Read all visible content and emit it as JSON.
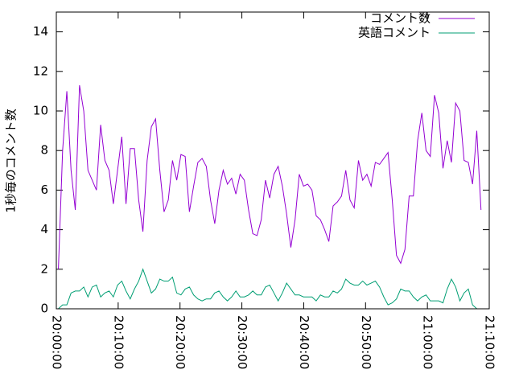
{
  "chart_data": {
    "type": "line",
    "y_label": "1秒毎のコメント数",
    "x": [
      "20:00:20",
      "20:01:01",
      "20:01:42",
      "20:02:23",
      "20:03:04",
      "20:03:45",
      "20:04:26",
      "20:05:07",
      "20:05:48",
      "20:06:29",
      "20:07:10",
      "20:07:51",
      "20:08:32",
      "20:09:13",
      "20:09:54",
      "20:10:35",
      "20:11:16",
      "20:11:57",
      "20:12:38",
      "20:13:19",
      "20:14:00",
      "20:14:41",
      "20:15:22",
      "20:16:03",
      "20:16:44",
      "20:17:25",
      "20:18:06",
      "20:18:47",
      "20:19:28",
      "20:20:09",
      "20:20:50",
      "20:21:31",
      "20:22:12",
      "20:22:53",
      "20:23:34",
      "20:24:15",
      "20:24:56",
      "20:25:37",
      "20:26:18",
      "20:26:59",
      "20:27:40",
      "20:28:21",
      "20:29:02",
      "20:29:43",
      "20:30:24",
      "20:31:05",
      "20:31:46",
      "20:32:27",
      "20:33:08",
      "20:33:49",
      "20:34:30",
      "20:35:11",
      "20:35:52",
      "20:36:33",
      "20:37:14",
      "20:37:55",
      "20:38:36",
      "20:39:17",
      "20:39:58",
      "20:40:39",
      "20:41:20",
      "20:42:01",
      "20:42:42",
      "20:43:23",
      "20:44:04",
      "20:44:45",
      "20:45:26",
      "20:46:07",
      "20:46:48",
      "20:47:29",
      "20:48:10",
      "20:48:51",
      "20:49:32",
      "20:50:13",
      "20:50:54",
      "20:51:35",
      "20:52:16",
      "20:52:57",
      "20:53:38",
      "20:54:19",
      "20:55:00",
      "20:55:41",
      "20:56:22",
      "20:57:03",
      "20:57:44",
      "20:58:25",
      "20:59:06",
      "20:59:47",
      "21:00:28",
      "21:01:09",
      "21:01:50",
      "21:02:31",
      "21:03:12",
      "21:03:53",
      "21:04:34",
      "21:05:15",
      "21:05:56",
      "21:06:37",
      "21:07:18",
      "21:07:59",
      "21:08:40"
    ],
    "series": [
      {
        "name": "コメント数",
        "color": "#9400d3",
        "values": [
          2,
          8,
          11,
          7,
          5,
          11.3,
          10,
          7,
          6.5,
          6,
          9.3,
          7.5,
          7,
          5.3,
          7,
          8.7,
          5.3,
          8.1,
          8.1,
          5.5,
          3.9,
          7.5,
          9.2,
          9.6,
          7,
          4.9,
          5.5,
          7.5,
          6.5,
          7.8,
          7.7,
          4.9,
          6.2,
          7.4,
          7.6,
          7.2,
          5.5,
          4.3,
          6,
          7,
          6.3,
          6.6,
          5.8,
          6.8,
          6.5,
          5,
          3.8,
          3.7,
          4.5,
          6.5,
          5.6,
          6.8,
          7.2,
          6.2,
          4.8,
          3.1,
          4.5,
          6.8,
          6.2,
          6.3,
          6,
          4.7,
          4.5,
          4,
          3.4,
          5.2,
          5.4,
          5.7,
          7,
          5.5,
          5.1,
          7.5,
          6.5,
          6.8,
          6.2,
          7.4,
          7.3,
          7.6,
          7.9,
          5.5,
          2.7,
          2.3,
          3,
          5.7,
          5.7,
          8.5,
          9.9,
          8,
          7.7,
          10.8,
          9.9,
          7.1,
          8.5,
          7.4,
          10.4,
          10,
          7.5,
          7.4,
          6.3,
          9,
          5
        ]
      },
      {
        "name": "英語コメント",
        "color": "#009e73",
        "values": [
          0,
          0.2,
          0.2,
          0.8,
          0.9,
          0.9,
          1.1,
          0.6,
          1.1,
          1.2,
          0.6,
          0.8,
          0.9,
          0.6,
          1.2,
          1.4,
          0.9,
          0.5,
          1.0,
          1.4,
          2.0,
          1.4,
          0.8,
          1.0,
          1.5,
          1.4,
          1.4,
          1.6,
          0.8,
          0.7,
          1.0,
          1.1,
          0.7,
          0.5,
          0.4,
          0.5,
          0.5,
          0.8,
          0.9,
          0.6,
          0.4,
          0.6,
          0.9,
          0.6,
          0.6,
          0.7,
          0.9,
          0.7,
          0.7,
          1.1,
          1.2,
          0.8,
          0.4,
          0.8,
          1.3,
          1.0,
          0.7,
          0.7,
          0.6,
          0.6,
          0.6,
          0.4,
          0.7,
          0.6,
          0.6,
          0.9,
          0.8,
          1.0,
          1.5,
          1.3,
          1.2,
          1.2,
          1.4,
          1.2,
          1.3,
          1.4,
          1.1,
          0.6,
          0.2,
          0.3,
          0.5,
          1.0,
          0.9,
          0.9,
          0.6,
          0.4,
          0.6,
          0.7,
          0.4,
          0.4,
          0.4,
          0.3,
          1.0,
          1.5,
          1.1,
          0.4,
          0.8,
          1.0,
          0.2,
          0.0,
          0.0
        ]
      }
    ],
    "xlim": [
      "20:00:00",
      "21:10:00"
    ],
    "xticks": [
      "20:00:00",
      "20:10:00",
      "20:20:00",
      "20:30:00",
      "20:40:00",
      "20:50:00",
      "21:00:00",
      "21:10:00"
    ],
    "ylim": [
      0,
      15
    ],
    "yticks": [
      0,
      2,
      4,
      6,
      8,
      10,
      12,
      14
    ],
    "legend": "top-right"
  }
}
